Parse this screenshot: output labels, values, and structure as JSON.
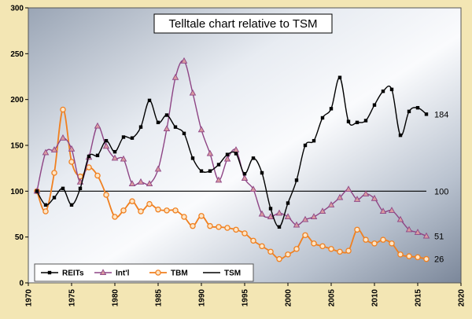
{
  "chart_data": {
    "type": "line",
    "title": "Telltale chart relative to TSM",
    "xlim": [
      1970,
      2020
    ],
    "ylim": [
      0,
      300
    ],
    "x_ticks": [
      1970,
      1975,
      1980,
      1985,
      1990,
      1995,
      2000,
      2005,
      2010,
      2015,
      2020
    ],
    "y_ticks": [
      0,
      50,
      100,
      150,
      200,
      250,
      300
    ],
    "grid": false,
    "legend_position": "bottom-left",
    "colors": {
      "frame_background": "#f3e6b4",
      "REITs": "#000000",
      "Int'l": "#8e4585",
      "Int'l_marker": "#d99aa0",
      "TBM": "#f08020",
      "TSM": "#000000"
    },
    "end_labels": [
      "184",
      "100",
      "51",
      "26"
    ],
    "series": [
      {
        "name": "REITs",
        "marker": "square",
        "x": [
          1971,
          1972,
          1973,
          1974,
          1975,
          1976,
          1977,
          1978,
          1979,
          1980,
          1981,
          1982,
          1983,
          1984,
          1985,
          1986,
          1987,
          1988,
          1989,
          1990,
          1991,
          1992,
          1993,
          1994,
          1995,
          1996,
          1997,
          1998,
          1999,
          2000,
          2001,
          2002,
          2003,
          2004,
          2005,
          2006,
          2007,
          2008,
          2009,
          2010,
          2011,
          2012,
          2013,
          2014,
          2015,
          2016
        ],
        "values": [
          100,
          85,
          93,
          103,
          85,
          103,
          138,
          139,
          155,
          143,
          159,
          158,
          170,
          199,
          175,
          183,
          170,
          163,
          136,
          122,
          122,
          129,
          140,
          141,
          119,
          136,
          120,
          81,
          61,
          87,
          112,
          150,
          155,
          180,
          190,
          224,
          176,
          175,
          177,
          194,
          209,
          211,
          161,
          187,
          191,
          184
        ]
      },
      {
        "name": "Int'l",
        "marker": "triangle",
        "x": [
          1971,
          1972,
          1973,
          1974,
          1975,
          1976,
          1977,
          1978,
          1979,
          1980,
          1981,
          1982,
          1983,
          1984,
          1985,
          1986,
          1987,
          1988,
          1989,
          1990,
          1991,
          1992,
          1993,
          1994,
          1995,
          1996,
          1997,
          1998,
          1999,
          2000,
          2001,
          2002,
          2003,
          2004,
          2005,
          2006,
          2007,
          2008,
          2009,
          2010,
          2011,
          2012,
          2013,
          2014,
          2015,
          2016
        ],
        "values": [
          100,
          142,
          145,
          158,
          146,
          110,
          137,
          171,
          149,
          136,
          135,
          108,
          110,
          108,
          124,
          168,
          224,
          242,
          207,
          167,
          141,
          112,
          135,
          145,
          114,
          102,
          75,
          72,
          76,
          72,
          63,
          69,
          72,
          78,
          85,
          93,
          102,
          91,
          97,
          92,
          78,
          79,
          69,
          58,
          55,
          51
        ]
      },
      {
        "name": "TBM",
        "marker": "circle",
        "x": [
          1971,
          1972,
          1973,
          1974,
          1975,
          1976,
          1977,
          1978,
          1979,
          1980,
          1981,
          1982,
          1983,
          1984,
          1985,
          1986,
          1987,
          1988,
          1989,
          1990,
          1991,
          1992,
          1993,
          1994,
          1995,
          1996,
          1997,
          1998,
          1999,
          2000,
          2001,
          2002,
          2003,
          2004,
          2005,
          2006,
          2007,
          2008,
          2009,
          2010,
          2011,
          2012,
          2013,
          2014,
          2015,
          2016
        ],
        "values": [
          100,
          78,
          120,
          189,
          132,
          116,
          126,
          117,
          96,
          72,
          79,
          89,
          78,
          86,
          80,
          79,
          79,
          72,
          62,
          73,
          62,
          61,
          60,
          58,
          54,
          46,
          40,
          34,
          26,
          31,
          37,
          52,
          43,
          40,
          37,
          34,
          35,
          58,
          47,
          43,
          47,
          43,
          31,
          29,
          28,
          26
        ]
      },
      {
        "name": "TSM",
        "marker": "none",
        "x": [
          1971,
          2016
        ],
        "values": [
          100,
          100
        ]
      }
    ]
  }
}
